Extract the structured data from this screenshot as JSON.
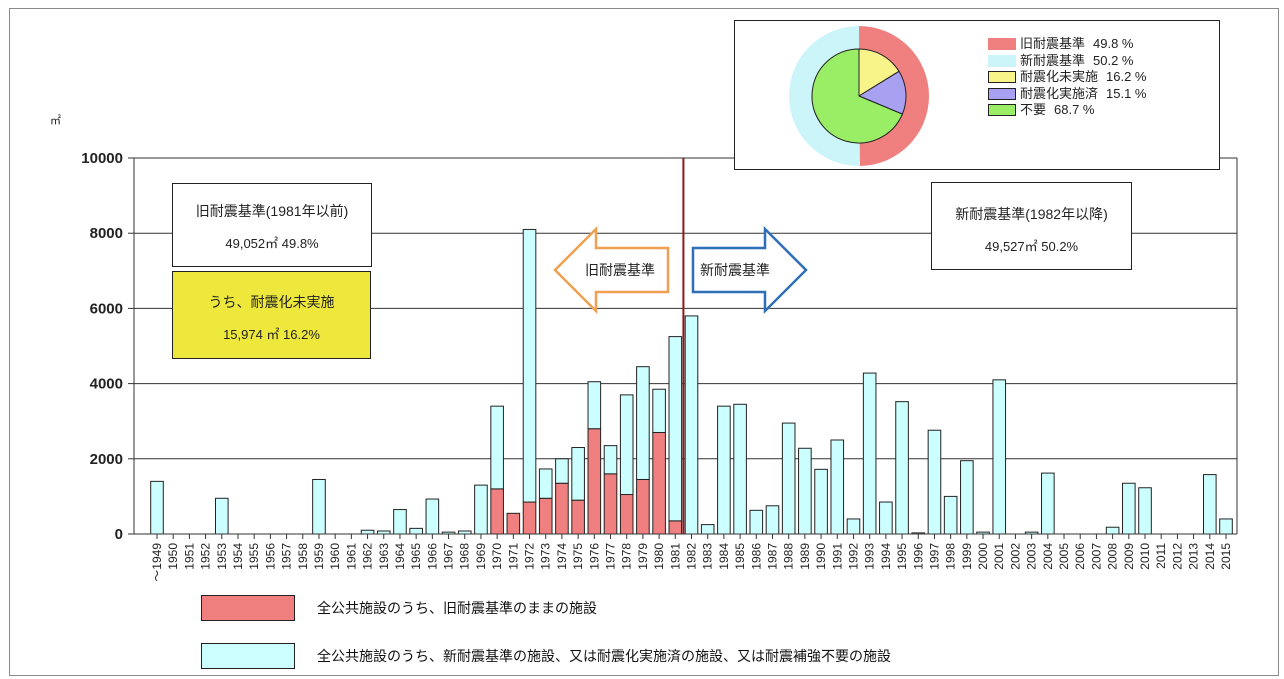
{
  "chart_data": {
    "type": "bar",
    "unit": "㎡",
    "ylim": [
      0,
      10000
    ],
    "yticks": [
      "0",
      "2000",
      "4000",
      "6000",
      "8000",
      "10000"
    ],
    "grid": "horizontal",
    "categories": [
      "～1949",
      "1950",
      "1951",
      "1952",
      "1953",
      "1954",
      "1955",
      "1956",
      "1957",
      "1958",
      "1959",
      "1960",
      "1961",
      "1962",
      "1963",
      "1964",
      "1965",
      "1966",
      "1967",
      "1968",
      "1969",
      "1970",
      "1971",
      "1972",
      "1973",
      "1974",
      "1975",
      "1976",
      "1977",
      "1978",
      "1979",
      "1980",
      "1981",
      "1982",
      "1983",
      "1984",
      "1985",
      "1986",
      "1987",
      "1988",
      "1989",
      "1990",
      "1991",
      "1992",
      "1993",
      "1994",
      "1995",
      "1996",
      "1997",
      "1998",
      "1999",
      "2000",
      "2001",
      "2002",
      "2003",
      "2004",
      "2005",
      "2006",
      "2007",
      "2008",
      "2009",
      "2010",
      "2011",
      "2012",
      "2013",
      "2014",
      "2015"
    ],
    "series": [
      {
        "key": "old",
        "color": "#f08080",
        "values": [
          0,
          0,
          0,
          0,
          0,
          0,
          0,
          0,
          0,
          0,
          0,
          0,
          0,
          0,
          0,
          0,
          0,
          0,
          0,
          0,
          0,
          1200,
          550,
          850,
          950,
          1350,
          900,
          2800,
          1600,
          1050,
          1450,
          2700,
          350,
          0,
          0,
          0,
          0,
          0,
          0,
          0,
          0,
          0,
          0,
          0,
          0,
          0,
          0,
          0,
          0,
          0,
          0,
          0,
          0,
          0,
          0,
          0,
          0,
          0,
          0,
          0,
          0,
          0,
          0,
          0,
          0,
          0,
          0
        ]
      },
      {
        "key": "new",
        "color": "#ccffff",
        "values": [
          1400,
          0,
          0,
          0,
          950,
          0,
          0,
          0,
          0,
          0,
          1450,
          0,
          0,
          100,
          80,
          650,
          150,
          930,
          50,
          80,
          1300,
          2200,
          0,
          7250,
          780,
          650,
          1400,
          1250,
          750,
          2650,
          3000,
          1150,
          4900,
          5800,
          250,
          3400,
          3450,
          630,
          750,
          2950,
          2280,
          1720,
          2500,
          400,
          4280,
          850,
          3520,
          30,
          2760,
          1000,
          1950,
          50,
          4100,
          0,
          50,
          1620,
          0,
          0,
          0,
          180,
          1350,
          1230,
          0,
          0,
          0,
          1580,
          400
        ]
      }
    ],
    "divider_after": "1981",
    "old_box": {
      "title": "旧耐震基準(1981年以前)",
      "value": "49,052㎡ 49.8%"
    },
    "unretrofitted_box": {
      "title": "うち、耐震化未実施",
      "value": "15,974 ㎡ 16.2%"
    },
    "new_box": {
      "title": "新耐震基準(1982年以降)",
      "value": "49,527㎡ 50.2%"
    },
    "arrow_old_label": "旧耐震基準",
    "arrow_new_label": "新耐震基準",
    "bottom_legend": [
      {
        "color": "#f08080",
        "label": "全公共施設のうち、旧耐震基準のままの施設"
      },
      {
        "color": "#ccffff",
        "label": "全公共施設のうち、新耐震基準の施設、又は耐震化実施済の施設、又は耐震補強不要の施設"
      }
    ],
    "pie": {
      "outer": [
        {
          "name": "旧耐震基準",
          "value": 49.8,
          "color": "#f08080"
        },
        {
          "name": "新耐震基準",
          "value": 50.2,
          "color": "#ccf5fa"
        }
      ],
      "inner": [
        {
          "name": "耐震化未実施",
          "value": 16.2,
          "color": "#f8f48a"
        },
        {
          "name": "耐震化実施済",
          "value": 15.1,
          "color": "#a8a0f0"
        },
        {
          "name": "不要",
          "value": 68.7,
          "color": "#99ee66"
        }
      ],
      "legend": [
        {
          "name": "旧耐震基準",
          "value": "49.8 %",
          "color": "#f08080",
          "border": "#f08080"
        },
        {
          "name": "新耐震基準",
          "value": "50.2 %",
          "color": "#ccf5fa",
          "border": "#ccf5fa"
        },
        {
          "name": "耐震化未実施",
          "value": "16.2 %",
          "color": "#f8f48a",
          "border": "#222222"
        },
        {
          "name": "耐震化実施済",
          "value": "15.1 %",
          "color": "#a8a0f0",
          "border": "#222222"
        },
        {
          "name": "不要",
          "value": "68.7 %",
          "color": "#99ee66",
          "border": "#222222"
        }
      ]
    }
  }
}
